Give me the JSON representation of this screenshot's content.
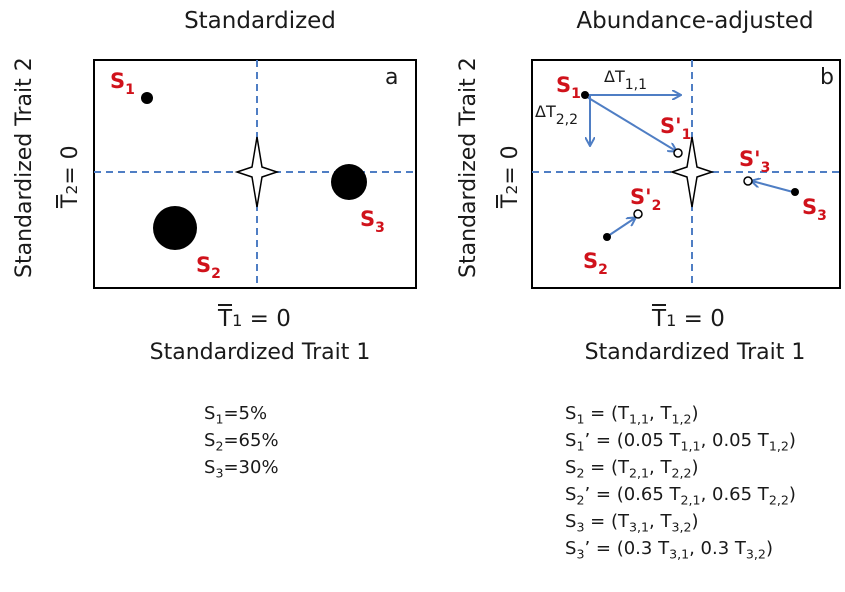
{
  "panel_a": {
    "title": "Standardized",
    "ylabel": "Standardized Trait 2",
    "yzero_label": "T",
    "yzero_sub": "2",
    "yzero_rest": "= 0",
    "xzero_label": "T",
    "xzero_sub": "1",
    "xzero_rest": " = 0",
    "xlabel": "Standardized Trait 1",
    "letter": "a",
    "species": [
      {
        "name": "S",
        "sub": "1"
      },
      {
        "name": "S",
        "sub": "2"
      },
      {
        "name": "S",
        "sub": "3"
      }
    ],
    "caption": [
      {
        "s": "S",
        "sub": "1",
        "rest": "=5%"
      },
      {
        "s": "S",
        "sub": "2",
        "rest": "=65%"
      },
      {
        "s": "S",
        "sub": "3",
        "rest": "=30%"
      }
    ]
  },
  "panel_b": {
    "title": "Abundance-adjusted",
    "ylabel": "Standardized Trait 2",
    "yzero_label": "T",
    "yzero_sub": "2",
    "yzero_rest": "= 0",
    "xzero_label": "T",
    "xzero_sub": "1",
    "xzero_rest": " = 0",
    "xlabel": "Standardized Trait 1",
    "letter": "b",
    "delta_x": {
      "main": "ΔT",
      "sub": "1,1"
    },
    "delta_y": {
      "main": "ΔT",
      "sub": "2,2"
    },
    "species": [
      {
        "name": "S",
        "sub": "1"
      },
      {
        "name": "S'",
        "sub": "1"
      },
      {
        "name": "S",
        "sub": "2"
      },
      {
        "name": "S'",
        "sub": "2"
      },
      {
        "name": "S",
        "sub": "3"
      },
      {
        "name": "S'",
        "sub": "3"
      }
    ],
    "caption": [
      {
        "pre": "S",
        "s1": "1",
        "mid": " = (T",
        "a": "1,1",
        "mid2": ", T",
        "b": "1,2",
        "end": ")"
      },
      {
        "pre": "S",
        "s1": "1",
        "mid": "’ = (0.05 T",
        "a": "1,1",
        "mid2": ", 0.05 T",
        "b": "1,2",
        "end": ")"
      },
      {
        "pre": "S",
        "s1": "2",
        "mid": " = (T",
        "a": "2,1",
        "mid2": ", T",
        "b": "2,2",
        "end": ")"
      },
      {
        "pre": "S",
        "s1": "2",
        "mid": "’ = (0.65 T",
        "a": "2,1",
        "mid2": ", 0.65 T",
        "b": "2,2",
        "end": ")"
      },
      {
        "pre": "S",
        "s1": "3",
        "mid": " = (T",
        "a": "3,1",
        "mid2": ", T",
        "b": "3,2",
        "end": ")"
      },
      {
        "pre": "S",
        "s1": "3",
        "mid": "’ = (0.3 T",
        "a": "3,1",
        "mid2": ", 0.3 T",
        "b": "3,2",
        "end": ")"
      }
    ]
  },
  "colors": {
    "species_label": "#d0121b",
    "axis_line": "#4f7ec4",
    "arrow": "#4f7ec4",
    "point": "#000000"
  }
}
